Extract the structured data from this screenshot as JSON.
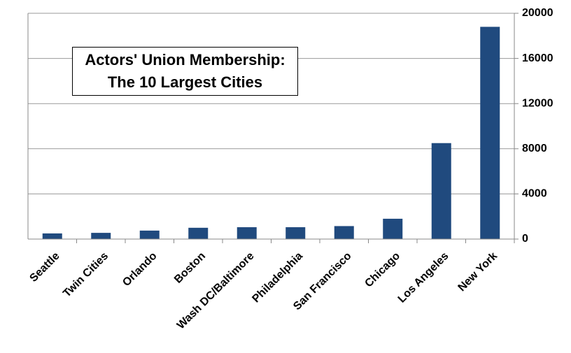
{
  "chart_data": {
    "type": "bar",
    "title": "Actors' Union Membership: The 10 Largest Cities",
    "categories": [
      "Seattle",
      "Twin Cities",
      "Orlando",
      "Boston",
      "Wash DC/Baltimore",
      "Philadelphia",
      "San Francisco",
      "Chicago",
      "Los Angeles",
      "New York"
    ],
    "values": [
      500,
      550,
      750,
      1000,
      1050,
      1050,
      1150,
      1800,
      8500,
      18800
    ],
    "color": "#204a7e",
    "ylim": [
      0,
      20000
    ],
    "yticks": [
      0,
      4000,
      8000,
      12000,
      16000,
      20000
    ],
    "grid": true
  }
}
